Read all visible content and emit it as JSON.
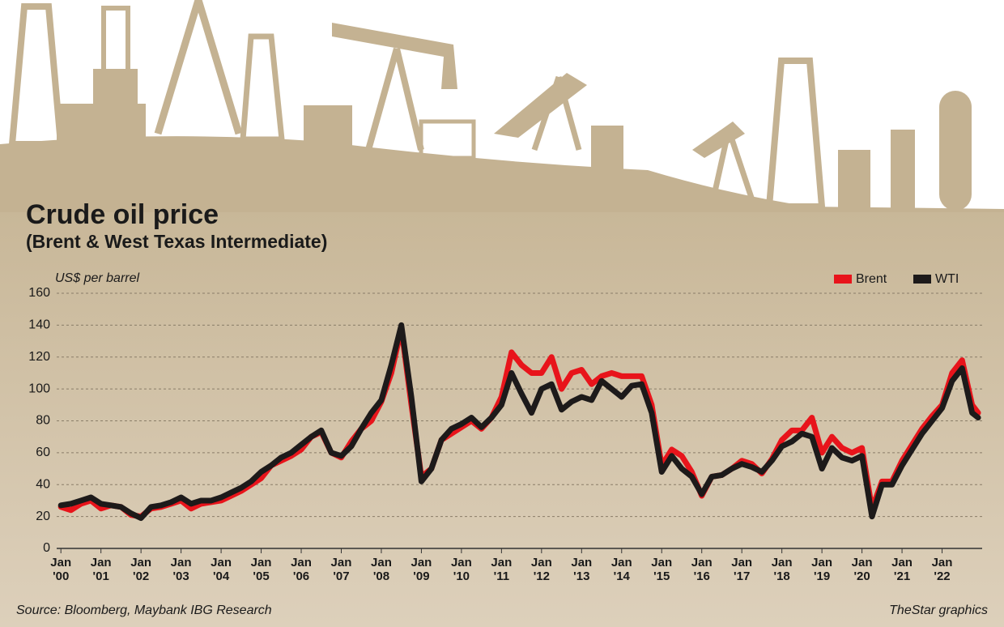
{
  "chart_data": {
    "type": "line",
    "title": "Crude oil price",
    "subtitle": "(Brent & West Texas Intermediate)",
    "y_label": "US$ per barrel",
    "source": "Source: Bloomberg, Maybank IBG Research",
    "credit": "TheStar graphics",
    "x": [
      2000,
      2000.25,
      2000.5,
      2000.75,
      2001,
      2001.25,
      2001.5,
      2001.75,
      2002,
      2002.25,
      2002.5,
      2002.75,
      2003,
      2003.25,
      2003.5,
      2003.75,
      2004,
      2004.25,
      2004.5,
      2004.75,
      2005,
      2005.25,
      2005.5,
      2005.75,
      2006,
      2006.25,
      2006.5,
      2006.75,
      2007,
      2007.25,
      2007.5,
      2007.75,
      2008,
      2008.25,
      2008.5,
      2008.75,
      2009,
      2009.25,
      2009.5,
      2009.75,
      2010,
      2010.25,
      2010.5,
      2010.75,
      2011,
      2011.25,
      2011.5,
      2011.75,
      2012,
      2012.25,
      2012.5,
      2012.75,
      2013,
      2013.25,
      2013.5,
      2013.75,
      2014,
      2014.25,
      2014.5,
      2014.75,
      2015,
      2015.25,
      2015.5,
      2015.75,
      2016,
      2016.25,
      2016.5,
      2016.75,
      2017,
      2017.25,
      2017.5,
      2017.75,
      2018,
      2018.25,
      2018.5,
      2018.75,
      2019,
      2019.25,
      2019.5,
      2019.75,
      2020,
      2020.25,
      2020.5,
      2020.75,
      2021,
      2021.25,
      2021.5,
      2021.75,
      2022,
      2022.25,
      2022.5,
      2022.75,
      2022.9
    ],
    "series": [
      {
        "name": "Brent",
        "color": "#e8141b",
        "values": [
          26,
          24,
          28,
          30,
          25,
          27,
          26,
          21,
          20,
          25,
          26,
          28,
          30,
          25,
          28,
          29,
          30,
          33,
          36,
          40,
          44,
          52,
          55,
          58,
          62,
          70,
          73,
          60,
          57,
          67,
          75,
          80,
          92,
          110,
          138,
          90,
          45,
          50,
          68,
          72,
          76,
          80,
          75,
          82,
          95,
          123,
          115,
          110,
          110,
          120,
          100,
          110,
          112,
          103,
          108,
          110,
          108,
          108,
          108,
          90,
          52,
          62,
          58,
          48,
          33,
          45,
          46,
          50,
          55,
          53,
          47,
          56,
          68,
          74,
          74,
          82,
          60,
          70,
          63,
          60,
          63,
          25,
          42,
          42,
          55,
          65,
          75,
          83,
          90,
          110,
          118,
          90,
          85
        ]
      },
      {
        "name": "WTI",
        "color": "#1d1a1a",
        "values": [
          27,
          28,
          30,
          32,
          28,
          27,
          26,
          22,
          19,
          26,
          27,
          29,
          32,
          28,
          30,
          30,
          32,
          35,
          38,
          42,
          48,
          52,
          57,
          60,
          65,
          70,
          74,
          60,
          58,
          64,
          75,
          85,
          93,
          115,
          140,
          95,
          42,
          50,
          68,
          75,
          78,
          82,
          76,
          82,
          90,
          110,
          97,
          85,
          100,
          103,
          87,
          92,
          95,
          93,
          105,
          100,
          95,
          102,
          103,
          85,
          48,
          58,
          50,
          45,
          34,
          45,
          46,
          50,
          53,
          51,
          48,
          55,
          64,
          67,
          72,
          70,
          50,
          63,
          57,
          55,
          58,
          20,
          40,
          40,
          52,
          62,
          72,
          80,
          88,
          105,
          113,
          85,
          82
        ]
      }
    ],
    "xlim": [
      1999.45,
      2023
    ],
    "xticks": [
      {
        "value": 2000,
        "label": "Jan '00"
      },
      {
        "value": 2001,
        "label": "Jan '01"
      },
      {
        "value": 2002,
        "label": "Jan '02"
      },
      {
        "value": 2003,
        "label": "Jan '03"
      },
      {
        "value": 2004,
        "label": "Jan '04"
      },
      {
        "value": 2005,
        "label": "Jan '05"
      },
      {
        "value": 2006,
        "label": "Jan '06"
      },
      {
        "value": 2007,
        "label": "Jan '07"
      },
      {
        "value": 2008,
        "label": "Jan '08"
      },
      {
        "value": 2009,
        "label": "Jan '09"
      },
      {
        "value": 2010,
        "label": "Jan '10"
      },
      {
        "value": 2011,
        "label": "Jan '11"
      },
      {
        "value": 2012,
        "label": "Jan '12"
      },
      {
        "value": 2013,
        "label": "Jan '13"
      },
      {
        "value": 2014,
        "label": "Jan '14"
      },
      {
        "value": 2015,
        "label": "Jan '15"
      },
      {
        "value": 2016,
        "label": "Jan '16"
      },
      {
        "value": 2017,
        "label": "Jan '17"
      },
      {
        "value": 2018,
        "label": "Jan '18"
      },
      {
        "value": 2019,
        "label": "Jan '19"
      },
      {
        "value": 2020,
        "label": "Jan '20"
      },
      {
        "value": 2021,
        "label": "Jan '21"
      },
      {
        "value": 2022,
        "label": "Jan '22"
      }
    ],
    "ylim": [
      0,
      160
    ],
    "yticks": [
      0,
      20,
      40,
      60,
      80,
      100,
      120,
      140,
      160
    ],
    "grid": true
  }
}
